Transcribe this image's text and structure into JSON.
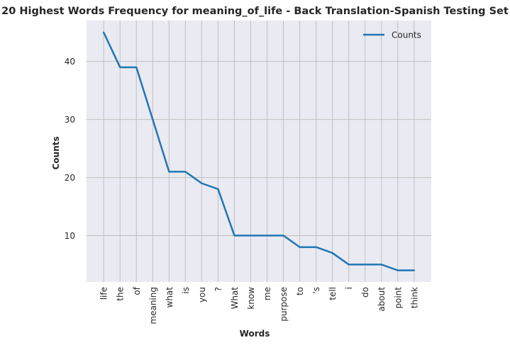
{
  "chart_data": {
    "type": "line",
    "title": "20 Highest Words Frequency for meaning_of_life - Back Translation-Spanish Testing Set",
    "xlabel": "Words",
    "ylabel": "Counts",
    "categories": [
      "life",
      "the",
      "of",
      "meaning",
      "what",
      "is",
      "you",
      "?",
      "What",
      "know",
      "me",
      "purpose",
      "to",
      "'s",
      "tell",
      "i",
      "do",
      "about",
      "point",
      "think"
    ],
    "series": [
      {
        "name": "Counts",
        "values": [
          45,
          39,
          39,
          30,
          21,
          21,
          19,
          18,
          10,
          10,
          10,
          10,
          8,
          8,
          7,
          5,
          5,
          5,
          4,
          4
        ],
        "color": "#1f77b4"
      }
    ],
    "yticks": [
      10,
      20,
      30,
      40
    ],
    "ylim": [
      2.0,
      47.05
    ],
    "grid": true,
    "legend_position": "top-right",
    "background": "#eaeaf2",
    "grid_color": "#c0c0c0"
  }
}
